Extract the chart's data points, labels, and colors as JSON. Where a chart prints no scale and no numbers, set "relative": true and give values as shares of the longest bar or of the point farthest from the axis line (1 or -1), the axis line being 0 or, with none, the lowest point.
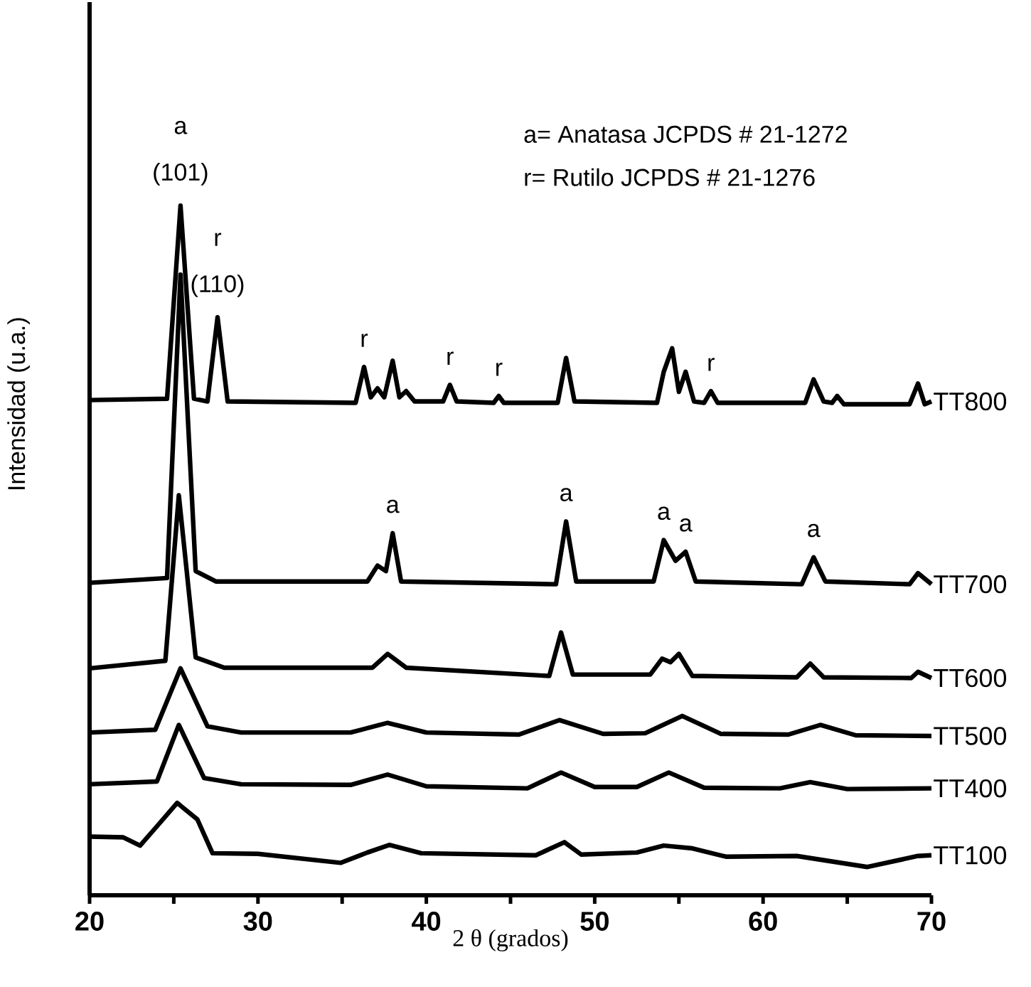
{
  "chart_data": {
    "type": "line",
    "relative": true,
    "xlabel": "2 θ (grados)",
    "ylabel": "Intensidad (u.a.)",
    "xlim": [
      20,
      70
    ],
    "xticks": [
      20,
      30,
      40,
      50,
      60,
      70
    ],
    "series": [
      {
        "name": "TT800",
        "color": "#000000",
        "x": [
          20,
          24.6,
          25.4,
          26.2,
          27.0,
          27.6,
          28.2,
          35.8,
          36.3,
          36.7,
          37.1,
          37.5,
          38.0,
          38.4,
          38.8,
          39.3,
          41.0,
          41.4,
          41.8,
          44.0,
          44.3,
          44.6,
          47.8,
          48.3,
          48.8,
          53.7,
          54.1,
          54.6,
          55.0,
          55.4,
          55.9,
          56.5,
          56.9,
          57.3,
          62.5,
          63.0,
          63.6,
          64.1,
          64.4,
          64.8,
          68.7,
          69.2,
          69.6,
          70
        ],
        "values": [
          0.718,
          0.72,
          1.0,
          0.72,
          0.716,
          0.838,
          0.716,
          0.714,
          0.766,
          0.722,
          0.735,
          0.722,
          0.775,
          0.722,
          0.731,
          0.716,
          0.716,
          0.74,
          0.716,
          0.714,
          0.724,
          0.714,
          0.714,
          0.779,
          0.716,
          0.714,
          0.759,
          0.793,
          0.73,
          0.759,
          0.716,
          0.714,
          0.731,
          0.714,
          0.714,
          0.748,
          0.716,
          0.714,
          0.724,
          0.712,
          0.712,
          0.742,
          0.712,
          0.716
        ]
      },
      {
        "name": "TT700",
        "color": "#000000",
        "x": [
          20,
          24.6,
          25.4,
          26.3,
          27.5,
          36.5,
          37.1,
          37.6,
          38.0,
          38.5,
          47.7,
          48.3,
          48.9,
          53.5,
          54.1,
          54.8,
          55.4,
          56.0,
          62.3,
          63.0,
          63.7,
          68.7,
          69.2,
          70
        ],
        "values": [
          0.453,
          0.46,
          0.9,
          0.47,
          0.455,
          0.455,
          0.478,
          0.47,
          0.525,
          0.455,
          0.451,
          0.542,
          0.455,
          0.455,
          0.515,
          0.485,
          0.498,
          0.455,
          0.451,
          0.49,
          0.455,
          0.451,
          0.467,
          0.451
        ]
      },
      {
        "name": "TT600",
        "color": "#000000",
        "x": [
          20,
          24.5,
          25.3,
          26.3,
          28,
          36.8,
          37.7,
          38.8,
          47.3,
          48.0,
          48.7,
          53.3,
          54.0,
          54.5,
          55.0,
          55.8,
          62.0,
          62.8,
          63.6,
          68.8,
          69.2,
          70
        ],
        "values": [
          0.329,
          0.34,
          0.58,
          0.345,
          0.33,
          0.33,
          0.35,
          0.33,
          0.318,
          0.381,
          0.32,
          0.32,
          0.343,
          0.338,
          0.35,
          0.318,
          0.316,
          0.336,
          0.316,
          0.315,
          0.324,
          0.315
        ]
      },
      {
        "name": "TT500",
        "color": "#000000",
        "x": [
          20,
          23.9,
          25.4,
          27.0,
          29,
          35.5,
          37.7,
          40,
          45.5,
          47.9,
          50.5,
          53,
          55.2,
          57.5,
          61.5,
          63.4,
          65.5,
          70
        ],
        "values": [
          0.236,
          0.24,
          0.329,
          0.245,
          0.236,
          0.236,
          0.25,
          0.236,
          0.233,
          0.254,
          0.234,
          0.235,
          0.26,
          0.234,
          0.233,
          0.247,
          0.232,
          0.231
        ]
      },
      {
        "name": "TT400",
        "color": "#000000",
        "x": [
          20,
          24.0,
          25.3,
          26.8,
          29,
          35.5,
          37.7,
          40,
          46,
          48.0,
          50,
          52.5,
          54.4,
          56.5,
          61,
          62.8,
          65,
          70
        ],
        "values": [
          0.161,
          0.165,
          0.247,
          0.17,
          0.161,
          0.16,
          0.175,
          0.158,
          0.155,
          0.178,
          0.157,
          0.157,
          0.178,
          0.156,
          0.155,
          0.164,
          0.154,
          0.155
        ]
      },
      {
        "name": "TT100",
        "color": "#000000",
        "x": [
          20,
          22.0,
          23.0,
          24.0,
          25.2,
          26.4,
          27.3,
          30,
          34.9,
          36.5,
          37.8,
          39.7,
          46.5,
          48.2,
          49.2,
          52.5,
          54.1,
          55.8,
          57.8,
          62,
          66.2,
          69.2,
          70
        ],
        "values": [
          0.085,
          0.084,
          0.072,
          0.1,
          0.134,
          0.11,
          0.061,
          0.06,
          0.047,
          0.062,
          0.073,
          0.061,
          0.058,
          0.077,
          0.059,
          0.062,
          0.072,
          0.068,
          0.056,
          0.057,
          0.041,
          0.057,
          0.058
        ]
      }
    ],
    "annotations": [
      "a= Anatasa JCPDS # 21-1272",
      "r= Rutilo JCPDS # 21-1276",
      {
        "text": "(101)",
        "x": 25.4,
        "y": 1.0
      },
      {
        "text": "a",
        "x": 25.4,
        "y": 1.0
      },
      {
        "text": "(110)",
        "x": 27.6,
        "y": 0.838
      },
      {
        "text": "r",
        "x": 27.6,
        "y": 0.838
      },
      {
        "text": "r",
        "x": 36.3,
        "y": 0.766
      },
      {
        "text": "r",
        "x": 41.4,
        "y": 0.74
      },
      {
        "text": "r",
        "x": 44.3,
        "y": 0.724
      },
      {
        "text": "r",
        "x": 56.9,
        "y": 0.731
      },
      {
        "text": "a",
        "x": 38.0,
        "y": 0.525
      },
      {
        "text": "a",
        "x": 48.3,
        "y": 0.542
      },
      {
        "text": "a",
        "x": 54.1,
        "y": 0.515
      },
      {
        "text": "a",
        "x": 55.4,
        "y": 0.498
      },
      {
        "text": "a",
        "x": 63.0,
        "y": 0.49
      }
    ]
  }
}
